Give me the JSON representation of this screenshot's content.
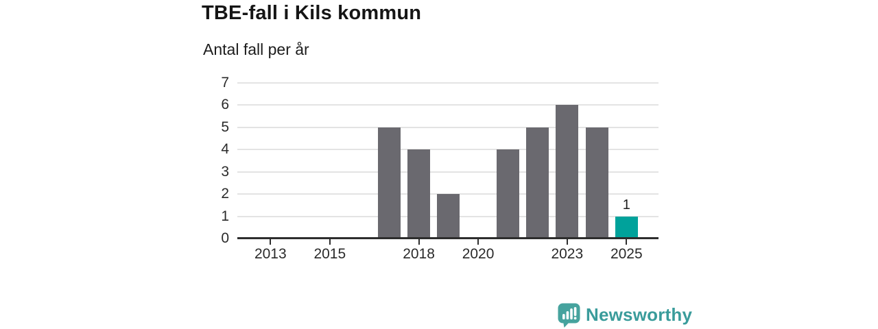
{
  "chart_data": {
    "type": "bar",
    "title": "TBE-fall i Kils kommun",
    "subtitle": "Antal fall per år",
    "categories": [
      2012,
      2013,
      2014,
      2015,
      2016,
      2017,
      2018,
      2019,
      2020,
      2021,
      2022,
      2023,
      2024,
      2025
    ],
    "values": [
      0,
      0,
      0,
      0,
      0,
      5,
      4,
      2,
      0,
      4,
      5,
      6,
      5,
      1
    ],
    "highlight_category": 2025,
    "data_labels": [
      {
        "category": 2025,
        "text": "1"
      }
    ],
    "xticks": [
      2013,
      2015,
      2018,
      2020,
      2023,
      2025
    ],
    "yticks": [
      0,
      1,
      2,
      3,
      4,
      5,
      6,
      7
    ],
    "ylim": [
      0,
      7
    ],
    "grid": true,
    "legend": "none",
    "colors": {
      "bar": "#6a696f",
      "highlight": "#00a29b",
      "gridline": "#e3e3e3",
      "axis_line": "#2d2d2d",
      "title_text": "#151515",
      "subtitle_text": "#1c1c1c",
      "tick_text": "#2a2a2a",
      "data_label_text": "#1c1c1c"
    }
  },
  "branding": {
    "wordmark": "Newsworthy",
    "wordmark_color": "#3a9c9b",
    "icon": "newsworthy-speech-bubble-bar-chart-icon",
    "icon_color": "#46a39e"
  }
}
